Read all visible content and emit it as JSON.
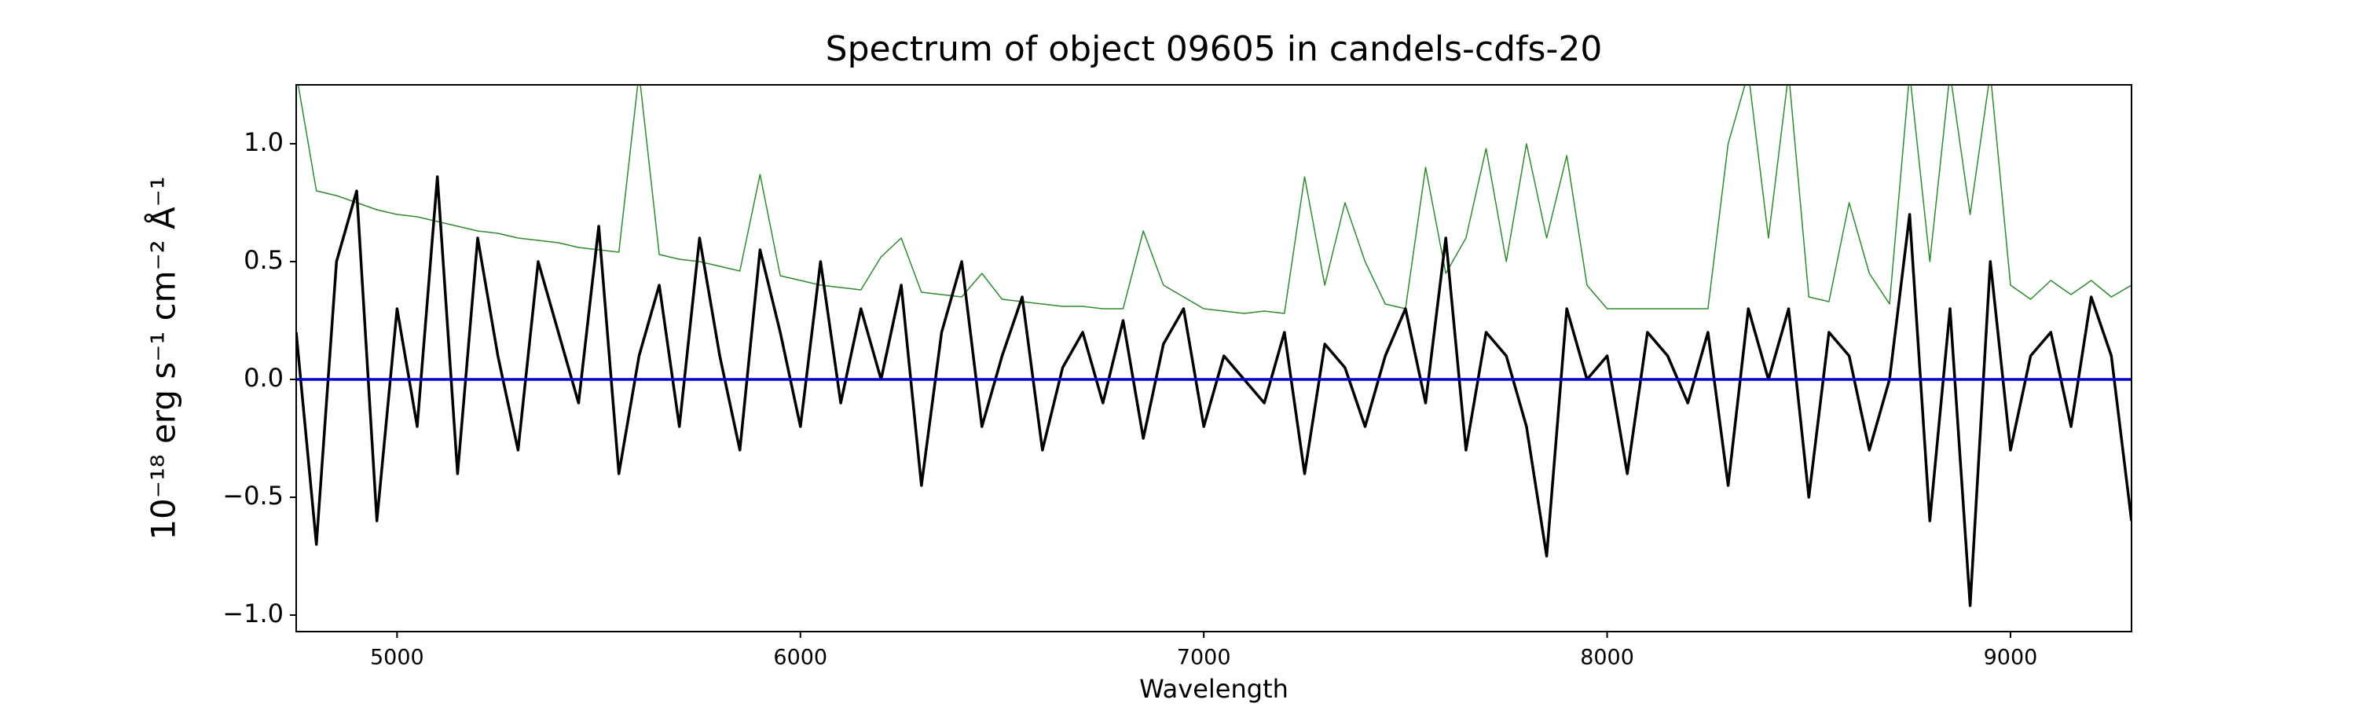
{
  "chart_data": {
    "type": "line",
    "title": "Spectrum of object 09605 in candels-cdfs-20",
    "xlabel": "Wavelength",
    "ylabel": "10⁻¹⁸ erg s⁻¹ cm⁻² Å⁻¹",
    "x": [
      4750,
      4800,
      4850,
      4900,
      4950,
      5000,
      5050,
      5100,
      5150,
      5200,
      5250,
      5300,
      5350,
      5400,
      5450,
      5500,
      5550,
      5600,
      5650,
      5700,
      5750,
      5800,
      5850,
      5900,
      5950,
      6000,
      6050,
      6100,
      6150,
      6200,
      6250,
      6300,
      6350,
      6400,
      6450,
      6500,
      6550,
      6600,
      6650,
      6700,
      6750,
      6800,
      6850,
      6900,
      6950,
      7000,
      7050,
      7100,
      7150,
      7200,
      7250,
      7300,
      7350,
      7400,
      7450,
      7500,
      7550,
      7600,
      7650,
      7700,
      7750,
      7800,
      7850,
      7900,
      7950,
      8000,
      8050,
      8100,
      8150,
      8200,
      8250,
      8300,
      8350,
      8400,
      8450,
      8500,
      8550,
      8600,
      8650,
      8700,
      8750,
      8800,
      8850,
      8900,
      8950,
      9000,
      9050,
      9100,
      9150,
      9200,
      9250,
      9300
    ],
    "series": [
      {
        "color": "#000000",
        "values": [
          0.2,
          -0.7,
          0.5,
          0.8,
          -0.6,
          0.3,
          -0.2,
          0.86,
          -0.4,
          0.6,
          0.1,
          -0.3,
          0.5,
          0.2,
          -0.1,
          0.65,
          -0.4,
          0.1,
          0.4,
          -0.2,
          0.6,
          0.1,
          -0.3,
          0.55,
          0.2,
          -0.2,
          0.5,
          -0.1,
          0.3,
          0.0,
          0.4,
          -0.45,
          0.2,
          0.5,
          -0.2,
          0.1,
          0.35,
          -0.3,
          0.05,
          0.2,
          -0.1,
          0.25,
          -0.25,
          0.15,
          0.3,
          -0.2,
          0.1,
          0.0,
          -0.1,
          0.2,
          -0.4,
          0.15,
          0.05,
          -0.2,
          0.1,
          0.3,
          -0.1,
          0.6,
          -0.3,
          0.2,
          0.1,
          -0.2,
          -0.75,
          0.3,
          0.0,
          0.1,
          -0.4,
          0.2,
          0.1,
          -0.1,
          0.2,
          -0.45,
          0.3,
          0.0,
          0.3,
          -0.5,
          0.2,
          0.1,
          -0.3,
          0.0,
          0.7,
          -0.6,
          0.3,
          -0.96,
          0.5,
          -0.3,
          0.1,
          0.2,
          -0.2,
          0.35,
          0.1,
          -0.6
        ]
      },
      {
        "color": "#2e8b2e",
        "values": [
          1.3,
          0.8,
          0.78,
          0.75,
          0.72,
          0.7,
          0.69,
          0.67,
          0.65,
          0.63,
          0.62,
          0.6,
          0.59,
          0.58,
          0.56,
          0.55,
          0.54,
          1.3,
          0.53,
          0.51,
          0.5,
          0.48,
          0.46,
          0.87,
          0.44,
          0.42,
          0.4,
          0.39,
          0.38,
          0.52,
          0.6,
          0.37,
          0.36,
          0.35,
          0.45,
          0.34,
          0.33,
          0.32,
          0.31,
          0.31,
          0.3,
          0.3,
          0.63,
          0.4,
          0.35,
          0.3,
          0.29,
          0.28,
          0.29,
          0.28,
          0.86,
          0.4,
          0.75,
          0.5,
          0.32,
          0.3,
          0.9,
          0.45,
          0.6,
          0.98,
          0.5,
          1.0,
          0.6,
          0.95,
          0.4,
          0.3,
          0.3,
          0.3,
          0.3,
          0.3,
          0.3,
          1.0,
          1.3,
          0.6,
          1.3,
          0.35,
          0.33,
          0.75,
          0.45,
          0.32,
          1.3,
          0.5,
          1.3,
          0.7,
          1.3,
          0.4,
          0.34,
          0.42,
          0.36,
          0.42,
          0.35,
          0.4
        ]
      },
      {
        "color": "#0000cc",
        "x": [
          4750,
          9300
        ],
        "values": [
          0,
          0
        ]
      }
    ],
    "xlim": [
      4750,
      9300
    ],
    "ylim": [
      -1.07,
      1.25
    ],
    "xticks": [
      5000,
      6000,
      7000,
      8000,
      9000
    ],
    "yticks": [
      {
        "value": -1,
        "label": "−1.0"
      },
      {
        "value": -0.5,
        "label": "−0.5"
      },
      {
        "value": 0,
        "label": "0.0"
      },
      0.5,
      {
        "value": 1,
        "label": "1.0"
      }
    ]
  }
}
